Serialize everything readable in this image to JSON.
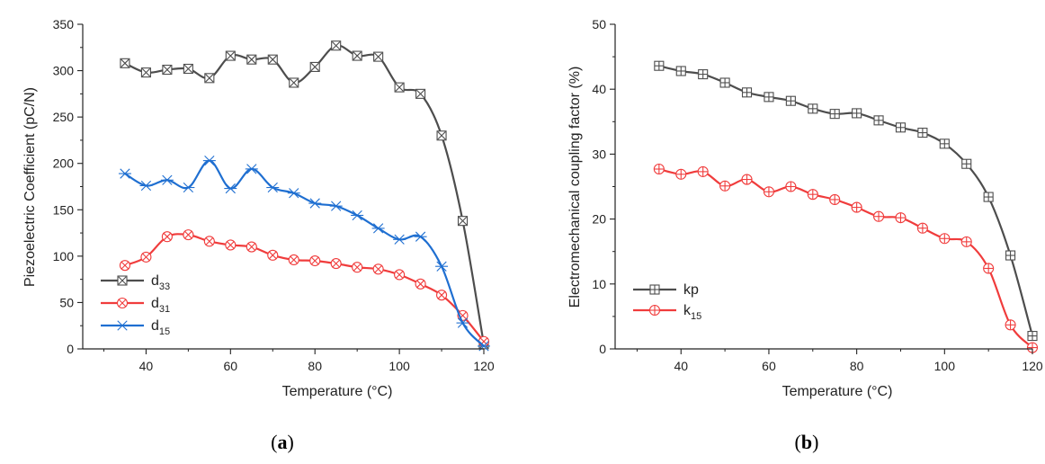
{
  "chart_data": [
    {
      "type": "line",
      "panel_label": "a",
      "xlabel": "Temperature (°C)",
      "ylabel": "Piezoelectric Coefficient (pC/N)",
      "xlim": [
        25,
        120
      ],
      "ylim": [
        0,
        350
      ],
      "xticks": [
        40,
        60,
        80,
        100,
        120
      ],
      "yticks": [
        0,
        50,
        100,
        150,
        200,
        250,
        300,
        350
      ],
      "grid": false,
      "legend": "bottom-left",
      "series": [
        {
          "name": "d33",
          "name_base": "d",
          "name_sub": "33",
          "color": "#4d4d4d",
          "marker": "square-x",
          "x": [
            35,
            40,
            45,
            50,
            55,
            60,
            65,
            70,
            75,
            80,
            85,
            90,
            95,
            100,
            105,
            110,
            115,
            120
          ],
          "y": [
            308,
            298,
            301,
            302,
            292,
            316,
            312,
            312,
            287,
            304,
            327,
            316,
            315,
            282,
            275,
            230,
            138,
            5
          ]
        },
        {
          "name": "d31",
          "name_base": "d",
          "name_sub": "31",
          "color": "#f03c3c",
          "marker": "circle-x",
          "x": [
            35,
            40,
            45,
            50,
            55,
            60,
            65,
            70,
            75,
            80,
            85,
            90,
            95,
            100,
            105,
            110,
            115,
            120
          ],
          "y": [
            90,
            99,
            121,
            123,
            116,
            112,
            110,
            101,
            96,
            95,
            92,
            88,
            86,
            80,
            70,
            58,
            36,
            8
          ]
        },
        {
          "name": "d15",
          "name_base": "d",
          "name_sub": "15",
          "color": "#1f6fd1",
          "marker": "star",
          "x": [
            35,
            40,
            45,
            50,
            55,
            60,
            65,
            70,
            75,
            80,
            85,
            90,
            95,
            100,
            105,
            110,
            115,
            120
          ],
          "y": [
            189,
            176,
            182,
            174,
            203,
            173,
            194,
            174,
            168,
            157,
            154,
            144,
            130,
            118,
            121,
            89,
            28,
            3
          ]
        }
      ]
    },
    {
      "type": "line",
      "panel_label": "b",
      "xlabel": "Temperature (°C)",
      "ylabel": "Electromechanical coupling factor (%)",
      "xlim": [
        25,
        120
      ],
      "ylim": [
        0,
        50
      ],
      "xticks": [
        40,
        60,
        80,
        100,
        120
      ],
      "yticks": [
        0,
        10,
        20,
        30,
        40,
        50
      ],
      "grid": false,
      "legend": "bottom-left",
      "series": [
        {
          "name": "kp",
          "name_base": "kp",
          "name_sub": "",
          "color": "#4d4d4d",
          "marker": "square-plus",
          "x": [
            35,
            40,
            45,
            50,
            55,
            60,
            65,
            70,
            75,
            80,
            85,
            90,
            95,
            100,
            105,
            110,
            115,
            120
          ],
          "y": [
            43.6,
            42.8,
            42.3,
            41.0,
            39.5,
            38.8,
            38.2,
            37.0,
            36.2,
            36.3,
            35.2,
            34.1,
            33.3,
            31.6,
            28.5,
            23.4,
            14.4,
            2.0
          ]
        },
        {
          "name": "k15",
          "name_base": "k",
          "name_sub": "15",
          "color": "#f03c3c",
          "marker": "circle-plus",
          "x": [
            35,
            40,
            45,
            50,
            55,
            60,
            65,
            70,
            75,
            80,
            85,
            90,
            95,
            100,
            105,
            110,
            115,
            120
          ],
          "y": [
            27.7,
            26.9,
            27.3,
            25.1,
            26.1,
            24.2,
            25.0,
            23.8,
            23.0,
            21.8,
            20.4,
            20.2,
            18.6,
            17.0,
            16.5,
            12.4,
            3.7,
            0.2
          ]
        }
      ]
    }
  ]
}
